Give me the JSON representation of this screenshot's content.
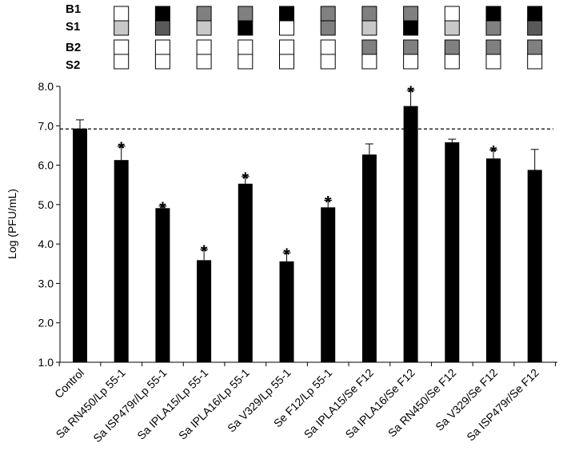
{
  "chart_data": {
    "type": "bar",
    "title": "",
    "xlabel": "",
    "ylabel": "Log (PFU/mL)",
    "ylim": [
      1.0,
      8.0
    ],
    "yticks": [
      "1.0",
      "2.0",
      "3.0",
      "4.0",
      "5.0",
      "6.0",
      "7.0",
      "8.0"
    ],
    "grid": false,
    "reference_line": {
      "value": 6.92,
      "style": "dashed"
    },
    "categories": [
      "Control",
      "Sa RN450/Lp 55-1",
      "Sa ISP479r/Lp 55-1",
      "Sa IPLA15/Lp 55-1",
      "Sa IPLA16/Lp 55-1",
      "Sa V329/Lp 55-1",
      "Se F12/Lp 55-1",
      "Sa IPLA15/Se F12",
      "Sa IPLA16/Se F12",
      "Sa RN450/Se F12",
      "Sa V329/Se F12",
      "Sa ISP479r/Se F12"
    ],
    "values": [
      6.93,
      6.13,
      4.91,
      3.59,
      5.53,
      3.56,
      4.93,
      6.27,
      7.5,
      6.58,
      6.17,
      5.88
    ],
    "errors": [
      0.22,
      0.35,
      0.05,
      0.27,
      0.18,
      0.22,
      0.18,
      0.27,
      0.4,
      0.08,
      0.22,
      0.52
    ],
    "significant": [
      false,
      true,
      true,
      true,
      true,
      true,
      true,
      false,
      true,
      false,
      true,
      false
    ],
    "significance_marker": "*",
    "bar_color": "#000000",
    "legend_rows": {
      "labels": [
        "B1",
        "S1",
        "B2",
        "S2"
      ],
      "colors": {
        "white": "#ffffff",
        "light": "#c8c8c8",
        "mid": "#808080",
        "dark": "#595959",
        "black": "#000000"
      },
      "top_box": [
        [
          "white",
          "light"
        ],
        [
          "black",
          "dark"
        ],
        [
          "mid",
          "light"
        ],
        [
          "mid",
          "black"
        ],
        [
          "black",
          "white"
        ],
        [
          "mid",
          "mid"
        ],
        [
          "mid",
          "light"
        ],
        [
          "mid",
          "black"
        ],
        [
          "white",
          "light"
        ],
        [
          "black",
          "mid"
        ],
        [
          "black",
          "dark"
        ]
      ],
      "bottom_box": [
        [
          "white",
          "white"
        ],
        [
          "white",
          "white"
        ],
        [
          "white",
          "white"
        ],
        [
          "white",
          "white"
        ],
        [
          "white",
          "white"
        ],
        [
          "white",
          "white"
        ],
        [
          "mid",
          "white"
        ],
        [
          "mid",
          "white"
        ],
        [
          "mid",
          "white"
        ],
        [
          "mid",
          "white"
        ],
        [
          "mid",
          "white"
        ]
      ]
    }
  }
}
